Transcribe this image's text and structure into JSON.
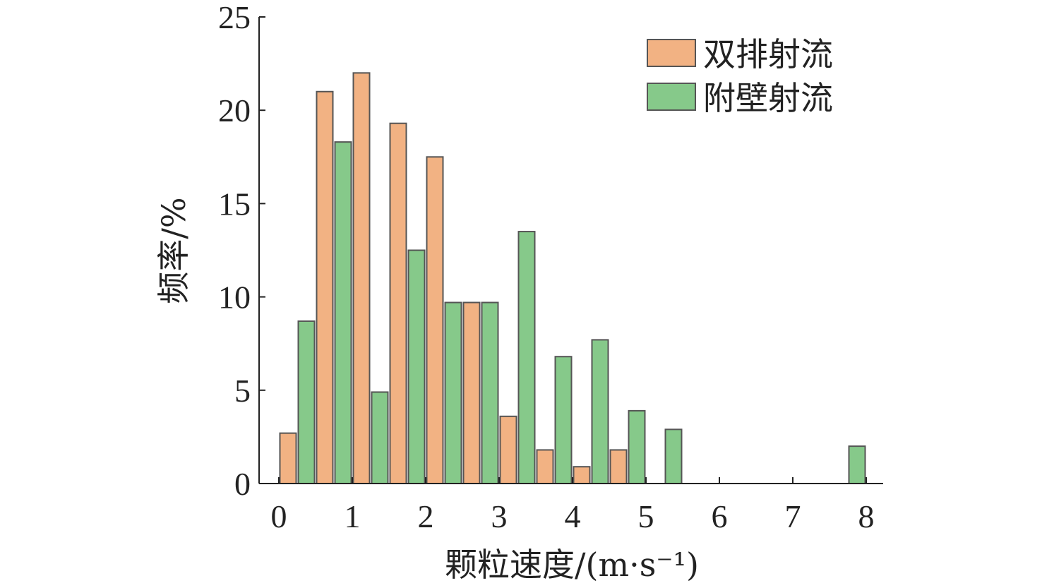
{
  "chart_data": {
    "type": "bar",
    "xlabel": "颗粒速度/(m·s⁻¹)",
    "ylabel": "频率/%",
    "xlim": [
      0,
      8
    ],
    "ylim": [
      0,
      25
    ],
    "x_ticks": [
      0,
      1,
      2,
      3,
      4,
      5,
      6,
      7,
      8
    ],
    "y_ticks": [
      0,
      5,
      10,
      15,
      20,
      25
    ],
    "grid": false,
    "legend_position": "top-right",
    "bin_width": 0.5,
    "bin_starts": [
      0,
      0.5,
      1,
      1.5,
      2,
      2.5,
      3,
      3.5,
      4,
      4.5,
      5,
      5.5,
      6,
      6.5,
      7,
      7.5
    ],
    "series": [
      {
        "name": "双排射流",
        "color": "#f2b283",
        "values": [
          2.7,
          21.0,
          22.0,
          19.3,
          17.5,
          9.7,
          3.6,
          1.8,
          0.9,
          1.8,
          0,
          0,
          0,
          0,
          0,
          0
        ]
      },
      {
        "name": "附壁射流",
        "color": "#86c98a",
        "values": [
          8.7,
          18.3,
          4.9,
          12.5,
          9.7,
          9.7,
          13.5,
          6.8,
          7.7,
          3.9,
          2.9,
          0,
          0,
          0,
          0,
          2.0
        ]
      }
    ]
  }
}
